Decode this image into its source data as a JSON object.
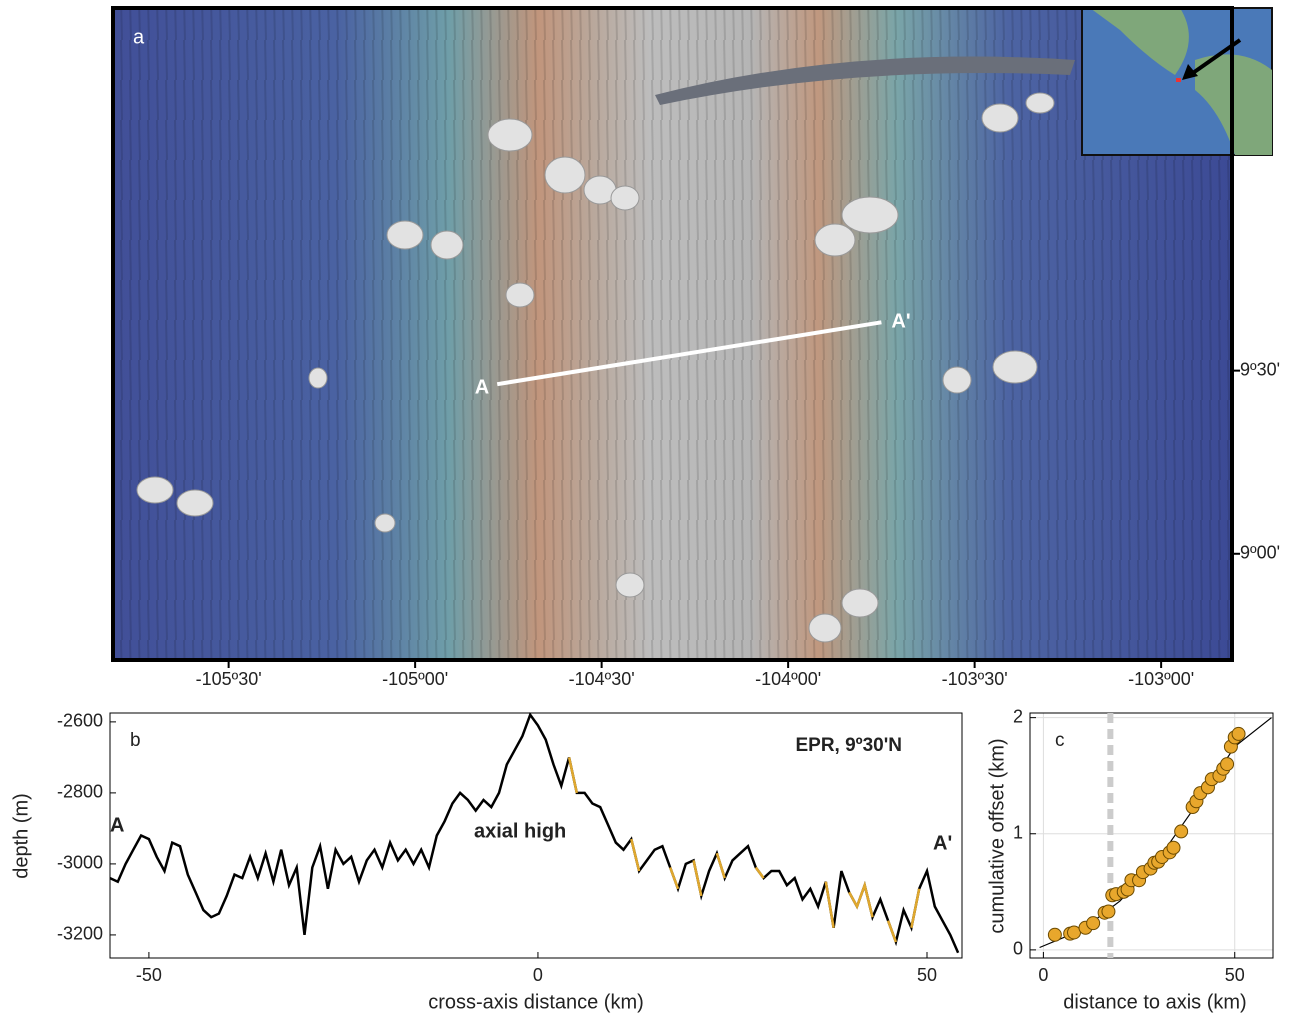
{
  "chart_data": [
    {
      "type": "map",
      "panel_label": "a",
      "xlim": [
        -105.81,
        -102.81
      ],
      "ylim": [
        8.71,
        10.49
      ],
      "xticks": [
        {
          "value": -105.5,
          "label": "-105º30'"
        },
        {
          "value": -105,
          "label": "-105º00'"
        },
        {
          "value": -104.5,
          "label": "-104º30'"
        },
        {
          "value": -104,
          "label": "-104º00'"
        },
        {
          "value": -103.5,
          "label": "-103º30'"
        },
        {
          "value": -103,
          "label": "-103º00'"
        }
      ],
      "yticks": [
        {
          "value": 9.5,
          "label": "9º30'"
        },
        {
          "value": 9,
          "label": "9º00'"
        }
      ],
      "profile": {
        "x": [
          -104.78,
          -103.75
        ],
        "y": [
          9.463,
          9.632
        ],
        "color": "#ffffff",
        "start_label": "A",
        "end_label": "A'"
      }
    },
    {
      "type": "line",
      "panel_label": "b",
      "title": "EPR, 9º30'N",
      "xlabel": "cross-axis distance (km)",
      "ylabel": "depth (m)",
      "xlim": [
        -55,
        54.5
      ],
      "ylim": [
        -3265,
        -2575
      ],
      "xticks": [
        -50,
        0,
        50
      ],
      "yticks": [
        -2600,
        -2800,
        -3000,
        -3200
      ],
      "annotations": [
        "A",
        "axial high",
        "A'"
      ],
      "x": [
        -55,
        -54,
        -53,
        -52,
        -51,
        -50,
        -49,
        -48,
        -47,
        -46,
        -45,
        -44,
        -43,
        -42,
        -41,
        -40,
        -39,
        -38,
        -37,
        -36,
        -35,
        -34,
        -33,
        -32,
        -31,
        -30,
        -29,
        -28,
        -27,
        -26,
        -25,
        -24,
        -23,
        -22,
        -21,
        -20,
        -19,
        -18,
        -17,
        -16,
        -15,
        -14,
        -13,
        -12,
        -11,
        -10,
        -9,
        -8,
        -7,
        -6,
        -5,
        -4,
        -3,
        -2,
        -1,
        0,
        1,
        2,
        3,
        4,
        5,
        6,
        7,
        8,
        9,
        10,
        11,
        12,
        13,
        14,
        15,
        16,
        17,
        18,
        19,
        20,
        21,
        22,
        23,
        24,
        25,
        26,
        27,
        28,
        29,
        30,
        31,
        32,
        33,
        34,
        35,
        36,
        37,
        38,
        39,
        40,
        41,
        42,
        43,
        44,
        45,
        46,
        47,
        48,
        49,
        50,
        51,
        52,
        53,
        54
      ],
      "values": [
        -3040,
        -3050,
        -3000,
        -2960,
        -2920,
        -2930,
        -2980,
        -3020,
        -2940,
        -2950,
        -3030,
        -3080,
        -3130,
        -3150,
        -3140,
        -3090,
        -3030,
        -3040,
        -2980,
        -3040,
        -2970,
        -3050,
        -2960,
        -3060,
        -3010,
        -3200,
        -3010,
        -2950,
        -3070,
        -2960,
        -3000,
        -2980,
        -3050,
        -2990,
        -2960,
        -3010,
        -2940,
        -2990,
        -2960,
        -3000,
        -2960,
        -3010,
        -2920,
        -2880,
        -2830,
        -2800,
        -2820,
        -2850,
        -2820,
        -2840,
        -2800,
        -2720,
        -2680,
        -2640,
        -2580,
        -2610,
        -2650,
        -2720,
        -2780,
        -2700,
        -2800,
        -2800,
        -2830,
        -2840,
        -2890,
        -2940,
        -2960,
        -2930,
        -3020,
        -2990,
        -2960,
        -2950,
        -3010,
        -3070,
        -3000,
        -2990,
        -3090,
        -3020,
        -2970,
        -3040,
        -2990,
        -2970,
        -2950,
        -3010,
        -3040,
        -3020,
        -3020,
        -3060,
        -3040,
        -3100,
        -3070,
        -3120,
        -3050,
        -3180,
        -3020,
        -3080,
        -3120,
        -3060,
        -3150,
        -3100,
        -3160,
        -3220,
        -3130,
        -3180,
        -3070,
        -3020,
        -3120,
        -3160,
        -3200,
        -3250
      ],
      "color": "#000000",
      "fault_segments": {
        "color": "#e0a82e",
        "values": [
          null,
          null,
          null,
          null,
          null,
          null,
          null,
          null,
          null,
          null,
          null,
          null,
          null,
          null,
          null,
          null,
          null,
          null,
          null,
          null,
          null,
          null,
          null,
          null,
          null,
          null,
          null,
          null,
          null,
          null,
          null,
          null,
          null,
          null,
          null,
          null,
          null,
          null,
          null,
          null,
          null,
          null,
          null,
          null,
          null,
          null,
          null,
          null,
          null,
          null,
          null,
          null,
          null,
          null,
          null,
          null,
          null,
          null,
          null,
          -2700,
          -2800,
          null,
          null,
          null,
          null,
          null,
          null,
          -2930,
          -3020,
          null,
          null,
          null,
          -3010,
          -3070,
          null,
          -2990,
          -3090,
          null,
          -2970,
          -3040,
          null,
          null,
          null,
          -3010,
          -3040,
          null,
          null,
          null,
          null,
          null,
          null,
          null,
          -3050,
          -3180,
          null,
          -3080,
          -3120,
          -3060,
          -3150,
          null,
          -3160,
          -3220,
          null,
          -3180,
          -3070,
          null,
          null,
          null,
          null,
          null
        ]
      }
    },
    {
      "type": "scatter",
      "panel_label": "c",
      "xlabel": "distance to axis (km)",
      "ylabel": "cumulative offset (km)",
      "xlim": [
        -3.5,
        60
      ],
      "ylim": [
        -0.07,
        2.04
      ],
      "xticks": [
        0,
        50
      ],
      "yticks": [
        0,
        1,
        2
      ],
      "grid": true,
      "vline": 17.5,
      "points": {
        "color": "#e8a72c",
        "x": [
          3,
          7,
          8,
          11,
          13,
          16,
          17,
          18,
          19,
          21,
          22,
          23,
          25,
          26,
          28,
          29,
          30,
          31,
          33,
          34,
          36,
          39,
          40,
          41,
          43,
          44,
          46,
          47,
          48,
          49,
          50,
          51
        ],
        "y": [
          0.13,
          0.14,
          0.15,
          0.19,
          0.23,
          0.32,
          0.33,
          0.47,
          0.48,
          0.5,
          0.52,
          0.6,
          0.6,
          0.67,
          0.7,
          0.75,
          0.76,
          0.8,
          0.84,
          0.88,
          1.02,
          1.23,
          1.28,
          1.35,
          1.4,
          1.47,
          1.5,
          1.56,
          1.6,
          1.75,
          1.83,
          1.86
        ]
      },
      "fit": {
        "color": "#000000",
        "x": [
          -1,
          10,
          20,
          30,
          40,
          50,
          59.6
        ],
        "y": [
          0.02,
          0.17,
          0.42,
          0.78,
          1.25,
          1.75,
          2.0
        ]
      }
    }
  ]
}
